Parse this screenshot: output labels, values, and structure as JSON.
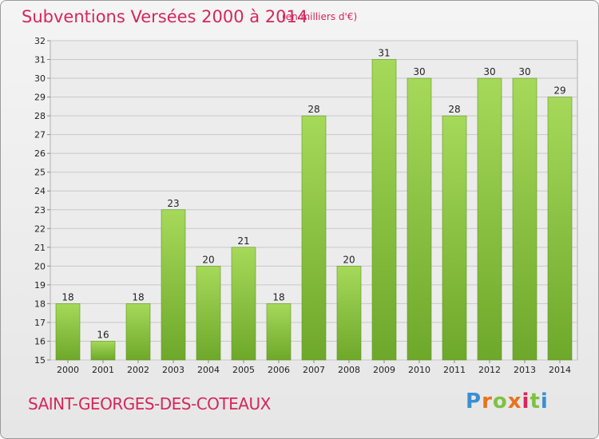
{
  "header": {
    "title": "Subventions Versées 2000 à 2014",
    "unit": "(en milliers d'€)"
  },
  "footer": {
    "town": "SAINT-GEORGES-DES-COTEAUX",
    "logo": "Proxiti",
    "logo_colors": [
      "#3a8fd0",
      "#e8731e",
      "#7cc242",
      "#e8731e",
      "#d6265a",
      "#7cc242",
      "#3a8fd0"
    ]
  },
  "colors": {
    "accent": "#d6265a",
    "bar_light": "#a6d95a",
    "bar_dark": "#6ea82a",
    "grid": "#c8c8c8"
  },
  "chart_data": {
    "type": "bar",
    "title": "Subventions Versées 2000 à 2014",
    "ylabel": "(en milliers d'€)",
    "xlabel": "",
    "categories": [
      "2000",
      "2001",
      "2002",
      "2003",
      "2004",
      "2005",
      "2006",
      "2007",
      "2008",
      "2009",
      "2010",
      "2011",
      "2012",
      "2013",
      "2014"
    ],
    "values": [
      18,
      16,
      18,
      23,
      20,
      21,
      18,
      28,
      20,
      31,
      30,
      28,
      30,
      30,
      29
    ],
    "ylim": [
      15,
      32
    ],
    "yticks": [
      15,
      16,
      17,
      18,
      19,
      20,
      21,
      22,
      23,
      24,
      25,
      26,
      27,
      28,
      29,
      30,
      31,
      32
    ],
    "grid": true
  }
}
